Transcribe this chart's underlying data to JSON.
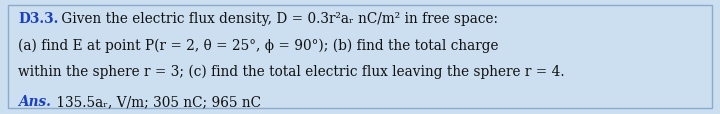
{
  "background_color": "#ccdff0",
  "border_color": "#8aabcc",
  "title_color": "#1a3fc4",
  "text_color": "#111111",
  "ans_color": "#1a3fc4",
  "font_size": 9.8,
  "line1_bold": "D3.3.",
  "line1_rest": " Given the electric flux density, D = 0.3r²aᵣ nC/m² in free space:",
  "line2": "(a) find E at point P(r = 2, θ = 25°, ϕ = 90°); (b) find the total charge",
  "line3": "within the sphere r = 3; (c) find the total electric flux leaving the sphere r = 4.",
  "ans_bold": "Ans.",
  "ans_rest": " 135.5aᵣ, V/m; 305 nC; 965 nC"
}
